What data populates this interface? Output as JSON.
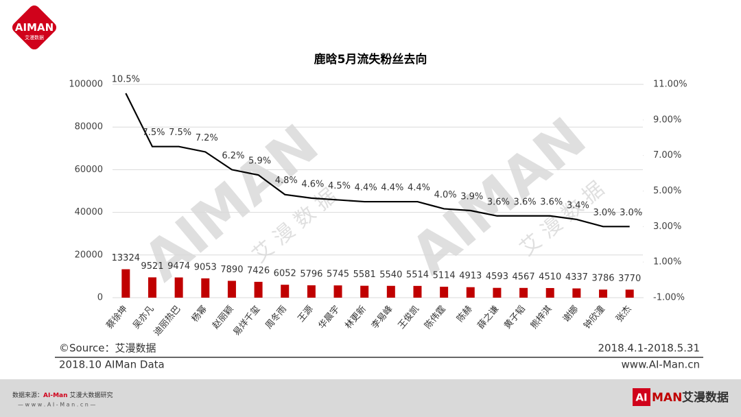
{
  "chart_data": {
    "type": "bar",
    "title": "鹿晗5月流失粉丝去向",
    "categories": [
      "蔡徐坤",
      "吴亦凡",
      "迪丽热巴",
      "杨幂",
      "赵丽颖",
      "易烊千玺",
      "周冬雨",
      "王源",
      "华晨宇",
      "林更新",
      "李易峰",
      "王俊凯",
      "陈伟霆",
      "陈赫",
      "薛之谦",
      "黄子韬",
      "熊梓淇",
      "谢娜",
      "钟欣潼",
      "张杰"
    ],
    "series": [
      {
        "type": "bar",
        "color": "#c00000",
        "values": [
          13324,
          9521,
          9474,
          9053,
          7890,
          7426,
          6052,
          5796,
          5745,
          5581,
          5540,
          5514,
          5114,
          4913,
          4593,
          4567,
          4510,
          4337,
          3786,
          3770
        ]
      },
      {
        "type": "line",
        "axis": "y2",
        "color": "#000000",
        "values": [
          10.5,
          7.5,
          7.5,
          7.2,
          6.2,
          5.9,
          4.8,
          4.6,
          4.5,
          4.4,
          4.4,
          4.4,
          4.0,
          3.9,
          3.6,
          3.6,
          3.6,
          3.4,
          3.0,
          3.0
        ],
        "value_labels": [
          "10.5%",
          "7.5%",
          "7.5%",
          "7.2%",
          "6.2%",
          "5.9%",
          "4.8%",
          "4.6%",
          "4.5%",
          "4.4%",
          "4.4%",
          "4.4%",
          "4.0%",
          "3.9%",
          "3.6%",
          "3.6%",
          "3.6%",
          "3.4%",
          "3.0%",
          "3.0%"
        ]
      }
    ],
    "ylim": [
      0,
      100000
    ],
    "yticks": [
      0,
      20000,
      40000,
      60000,
      80000,
      100000
    ],
    "y2lim": [
      -1,
      11
    ],
    "y2ticks": [
      {
        "value": -1,
        "label": "-1.00%"
      },
      {
        "value": 1,
        "label": "1.00%"
      },
      {
        "value": 3,
        "label": "3.00%"
      },
      {
        "value": 5,
        "label": "5.00%"
      },
      {
        "value": 7,
        "label": "7.00%"
      },
      {
        "value": 9,
        "label": "9.00%"
      },
      {
        "value": 11,
        "label": "11.00%"
      }
    ],
    "grid": true
  },
  "footer": {
    "source": "©Source：艾漫数据",
    "date_range": "2018.4.1-2018.5.31",
    "edition": "2018.10 AIMan Data",
    "website": "www.AI-Man.cn",
    "data_source_prefix": "数据来源：",
    "data_source_brand": "AI-Man",
    "data_source_rest": "艾漫大数据研究",
    "url": "— w w w . A I - M a n . c n —"
  },
  "logo": {
    "ai": "AI",
    "man": "MAN",
    "cn": "艾漫数据"
  },
  "watermark": {
    "brand": "AIMAN",
    "cn": "艾 漫 数 据"
  }
}
